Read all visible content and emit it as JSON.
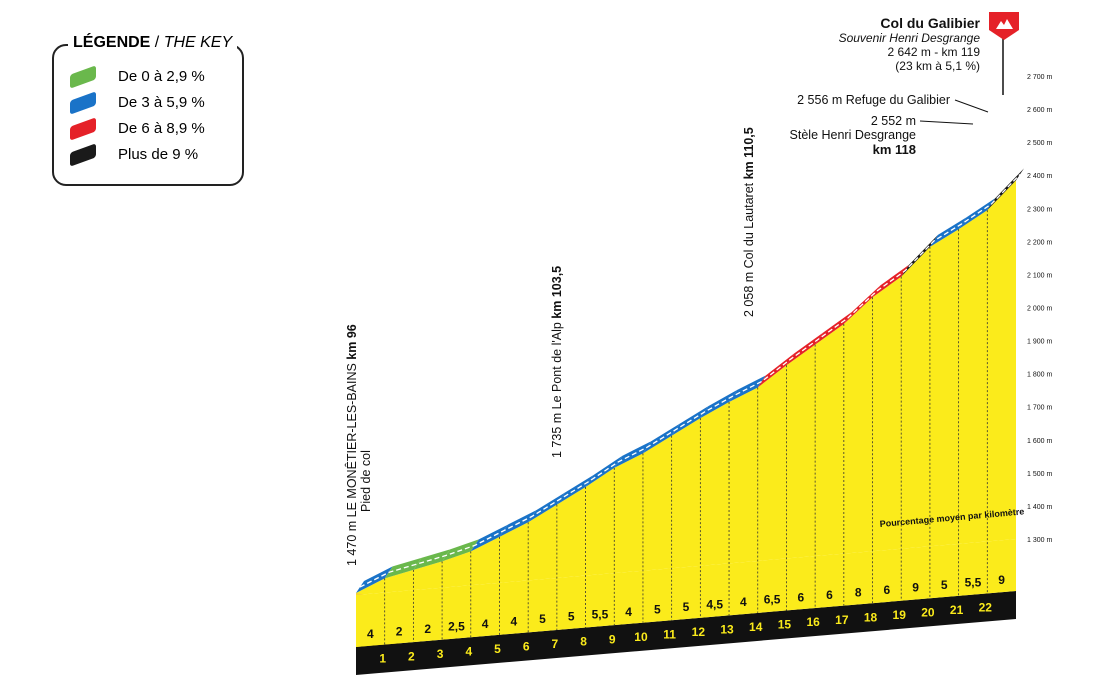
{
  "legend": {
    "title_fr": "LÉGENDE",
    "separator": " / ",
    "title_en": "THE KEY",
    "items": [
      {
        "label": "De 0 à 2,9 %",
        "color": "#6ab84c"
      },
      {
        "label": "De 3 à 5,9 %",
        "color": "#1a73c8"
      },
      {
        "label": "De 6 à 8,9 %",
        "color": "#e52128"
      },
      {
        "label": "Plus de 9 %",
        "color": "#1a1a1a"
      }
    ]
  },
  "summit": {
    "name": "Col du Galibier",
    "subtitle": "Souvenir Henri Desgrange",
    "line1": "2 642 m - km 119",
    "line2": "(23 km à 5,1 %)"
  },
  "annotations": {
    "refuge": "2 556 m Refuge du Galibier",
    "stele_alt": "2 552 m",
    "stele_name": "Stèle Henri Desgrange",
    "stele_km": "km 118",
    "start_text": "1 470 m LE MONÊTIER-LES-BAINS ",
    "start_km": "km 96",
    "start_sub": "Pied de col",
    "pont_text": "1 735 m Le Pont de l'Alp ",
    "pont_km": "km 103,5",
    "lautaret_text": "2 058 m Col du Lautaret ",
    "lautaret_km": "km 110,5"
  },
  "note": "Pourcentage moyen par kilomètre",
  "chart_data": {
    "type": "area",
    "title": "Col du Galibier",
    "y_ticks": [
      "1 300 m",
      "1 400 m",
      "1 500 m",
      "1 600 m",
      "1 700 m",
      "1 800 m",
      "1 900 m",
      "2 000 m",
      "2 100 m",
      "2 200 m",
      "2 300 m",
      "2 400 m",
      "2 500 m",
      "2 600 m",
      "2 700 m"
    ],
    "ylim": [
      1300,
      2700
    ],
    "km_labels": [
      "1",
      "2",
      "3",
      "4",
      "5",
      "6",
      "7",
      "8",
      "9",
      "10",
      "11",
      "12",
      "13",
      "14",
      "15",
      "16",
      "17",
      "18",
      "19",
      "20",
      "21",
      "22"
    ],
    "gradients": [
      "4",
      "2",
      "2",
      "2,5",
      "4",
      "4",
      "5",
      "5",
      "5,5",
      "4",
      "5",
      "5",
      "4,5",
      "4",
      "6,5",
      "6",
      "6",
      "8",
      "6",
      "9",
      "5",
      "5,5",
      "9"
    ],
    "gradient_values": [
      4,
      2,
      2,
      2.5,
      4,
      4,
      5,
      5,
      5.5,
      4,
      5,
      5,
      4.5,
      4,
      6.5,
      6,
      6,
      8,
      6,
      9,
      5,
      5.5,
      9
    ],
    "start_altitude": 1470,
    "summit_altitude": 2642,
    "total_distance_km": 23,
    "average_gradient": 5.1
  }
}
